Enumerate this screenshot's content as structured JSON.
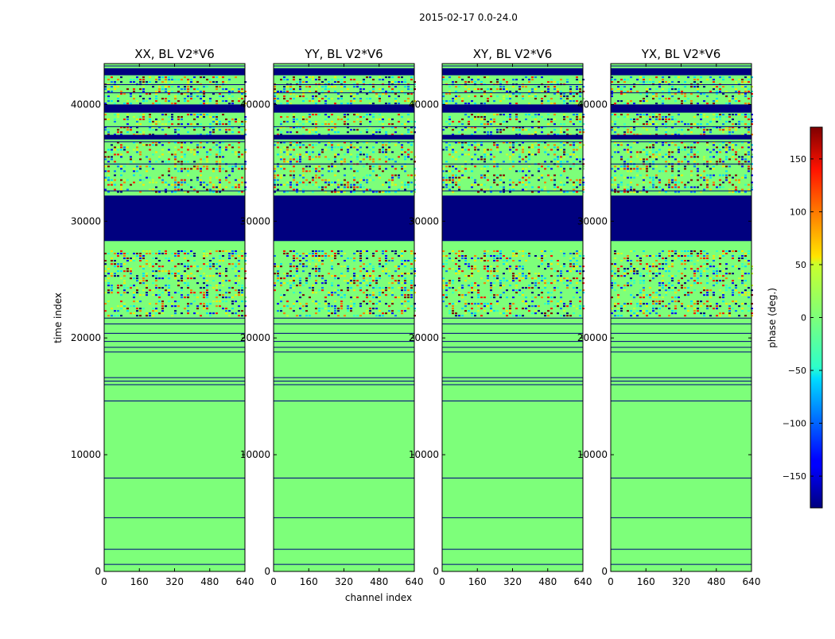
{
  "figure": {
    "suptitle": "2015-02-17 0.0-24.0",
    "xlabel": "channel index",
    "ylabel": "time index"
  },
  "colorbar": {
    "label": "phase (deg.)",
    "range": [
      -180,
      180
    ],
    "ticks": [
      150,
      100,
      50,
      0,
      -50,
      -100,
      -150
    ],
    "tick_labels": [
      "150",
      "100",
      "50",
      "0",
      "−50",
      "−100",
      "−150"
    ],
    "colormap": "jet"
  },
  "chart_data": {
    "type": "heatmap",
    "xlim": [
      0,
      640
    ],
    "ylim": [
      0,
      43500
    ],
    "x_ticks": [
      0,
      160,
      320,
      480,
      640
    ],
    "y_ticks": [
      0,
      10000,
      20000,
      30000,
      40000
    ],
    "x_tick_labels": [
      "0",
      "160",
      "320",
      "480",
      "640"
    ],
    "y_tick_labels": [
      "0",
      "10000",
      "20000",
      "30000",
      "40000"
    ],
    "background_phase_deg": 0,
    "colors": {
      "background": "#7dff7a",
      "flagged": "#00007f",
      "frame": "#000000"
    },
    "panels": [
      {
        "title": "XX, BL V2*V6"
      },
      {
        "title": "YY, BL V2*V6"
      },
      {
        "title": "XY, BL V2*V6"
      },
      {
        "title": "YX, BL V2*V6"
      }
    ],
    "flagged_time_ranges": [
      [
        28300,
        32200
      ],
      [
        39300,
        40000
      ],
      [
        37000,
        37400
      ],
      [
        42500,
        43100
      ]
    ],
    "flag_lines_time": [
      600,
      1900,
      4600,
      8000,
      14600,
      16000,
      16300,
      16600,
      18800,
      19200,
      19700,
      20400,
      21200,
      21700,
      28500,
      32600,
      34900,
      36800,
      38100,
      41000,
      41700,
      43300
    ],
    "noisy_time_ranges": [
      [
        21900,
        23200
      ],
      [
        23400,
        26400
      ],
      [
        26500,
        27500
      ],
      [
        32400,
        34000
      ],
      [
        34200,
        36800
      ],
      [
        37400,
        38100
      ],
      [
        38300,
        39200
      ],
      [
        40100,
        42400
      ]
    ]
  }
}
